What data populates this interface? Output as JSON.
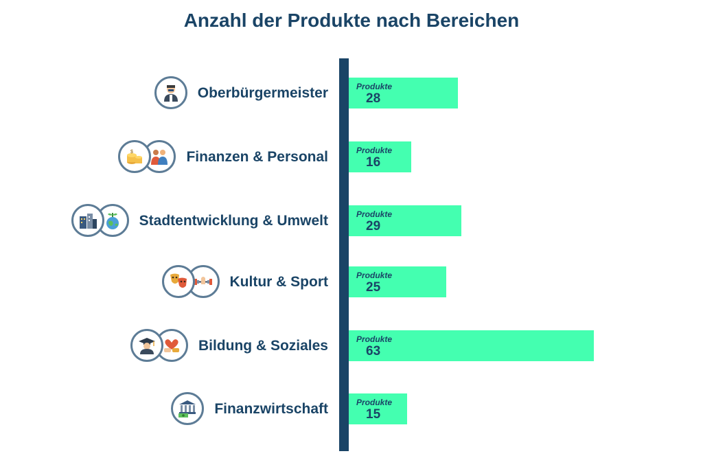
{
  "chart_data": {
    "type": "bar",
    "orientation": "horizontal",
    "title": "Anzahl der Produkte nach Bereichen",
    "unit_label": "Produkte",
    "xlim": [
      0,
      70
    ],
    "grid": false,
    "categories": [
      "Oberbürgermeister",
      "Finanzen & Personal",
      "Stadtentwicklung & Umwelt",
      "Kultur & Sport",
      "Bildung & Soziales",
      "Finanzwirtschaft"
    ],
    "values": [
      28,
      16,
      29,
      25,
      63,
      15
    ],
    "colors": {
      "bar": "#44ffb0",
      "axis": "#1a4466",
      "text": "#1a4466",
      "icon_ring": "#5d7c96"
    }
  },
  "icons": [
    [
      "mayor-person-icon"
    ],
    [
      "coins-money-icon",
      "people-group-icon"
    ],
    [
      "city-buildings-icon",
      "earth-plant-icon"
    ],
    [
      "theater-masks-icon",
      "dumbbell-fitness-icon"
    ],
    [
      "graduate-student-icon",
      "handshake-heart-icon"
    ],
    [
      "bank-money-icon"
    ]
  ]
}
